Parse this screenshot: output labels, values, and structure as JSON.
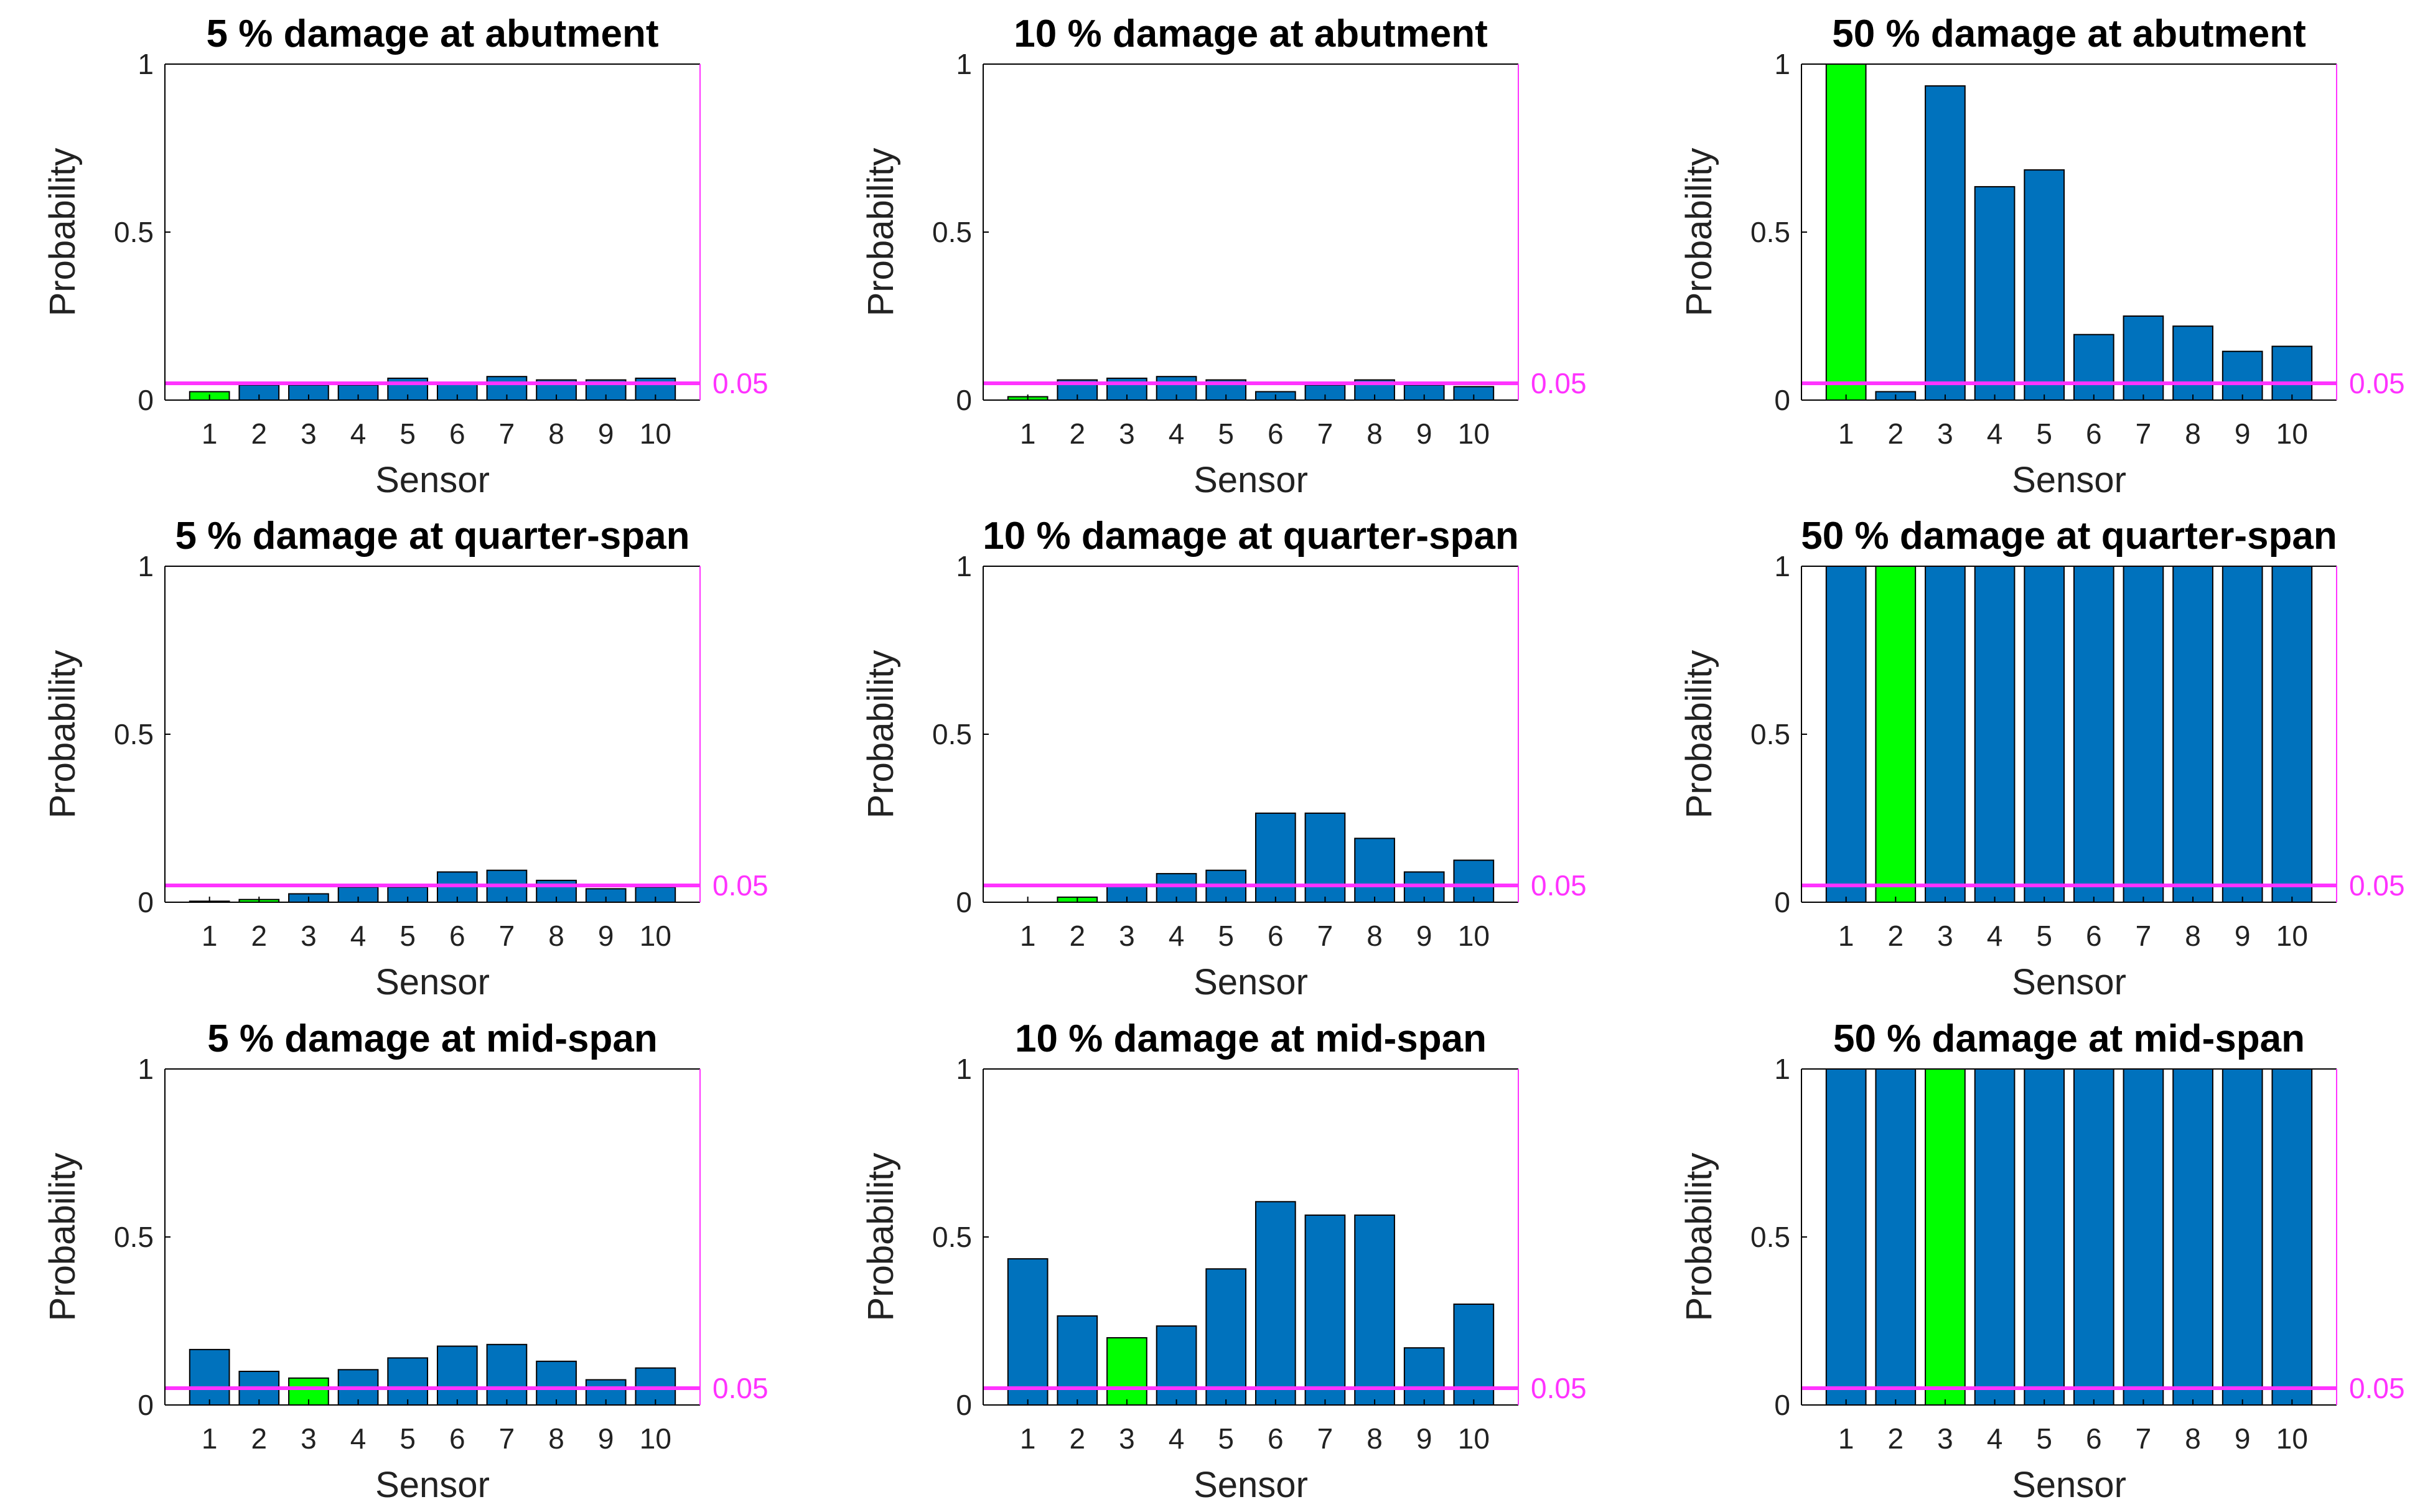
{
  "figure": {
    "colors": {
      "bar": "#0072BD",
      "highlight": "#00FF00",
      "threshold": "#FF33FF",
      "axis": "#000000",
      "right_axis": "#FF33FF"
    }
  },
  "chart_data": [
    {
      "type": "bar",
      "title": "5 % damage at abutment",
      "xlabel": "Sensor",
      "ylabel": "Probability",
      "categories": [
        "1",
        "2",
        "3",
        "4",
        "5",
        "6",
        "7",
        "8",
        "9",
        "10"
      ],
      "values": [
        0.025,
        0.045,
        0.045,
        0.045,
        0.065,
        0.05,
        0.07,
        0.06,
        0.06,
        0.065
      ],
      "highlight_index": 0,
      "ylim": [
        0,
        1
      ],
      "yticks": [
        "0",
        "0.5",
        "1"
      ],
      "threshold": 0.05,
      "threshold_label": "0.05"
    },
    {
      "type": "bar",
      "title": "10 % damage at abutment",
      "xlabel": "Sensor",
      "ylabel": "Probability",
      "categories": [
        "1",
        "2",
        "3",
        "4",
        "5",
        "6",
        "7",
        "8",
        "9",
        "10"
      ],
      "values": [
        0.01,
        0.06,
        0.065,
        0.07,
        0.06,
        0.025,
        0.045,
        0.06,
        0.045,
        0.04
      ],
      "highlight_index": 0,
      "ylim": [
        0,
        1
      ],
      "yticks": [
        "0",
        "0.5",
        "1"
      ],
      "threshold": 0.05,
      "threshold_label": "0.05"
    },
    {
      "type": "bar",
      "title": "50 % damage at abutment",
      "xlabel": "Sensor",
      "ylabel": "Probability",
      "categories": [
        "1",
        "2",
        "3",
        "4",
        "5",
        "6",
        "7",
        "8",
        "9",
        "10"
      ],
      "values": [
        1.0,
        0.025,
        0.935,
        0.635,
        0.685,
        0.195,
        0.25,
        0.22,
        0.145,
        0.16
      ],
      "highlight_index": 0,
      "ylim": [
        0,
        1
      ],
      "yticks": [
        "0",
        "0.5",
        "1"
      ],
      "threshold": 0.05,
      "threshold_label": "0.05"
    },
    {
      "type": "bar",
      "title": "5 % damage at quarter-span",
      "xlabel": "Sensor",
      "ylabel": "Probability",
      "categories": [
        "1",
        "2",
        "3",
        "4",
        "5",
        "6",
        "7",
        "8",
        "9",
        "10"
      ],
      "values": [
        0.003,
        0.008,
        0.025,
        0.045,
        0.045,
        0.09,
        0.095,
        0.065,
        0.04,
        0.045
      ],
      "highlight_index": 1,
      "ylim": [
        0,
        1
      ],
      "yticks": [
        "0",
        "0.5",
        "1"
      ],
      "threshold": 0.05,
      "threshold_label": "0.05"
    },
    {
      "type": "bar",
      "title": "10 % damage at quarter-span",
      "xlabel": "Sensor",
      "ylabel": "Probability",
      "categories": [
        "1",
        "2",
        "3",
        "4",
        "5",
        "6",
        "7",
        "8",
        "9",
        "10"
      ],
      "values": [
        0.0,
        0.015,
        0.05,
        0.085,
        0.095,
        0.265,
        0.265,
        0.19,
        0.09,
        0.125
      ],
      "highlight_index": 1,
      "ylim": [
        0,
        1
      ],
      "yticks": [
        "0",
        "0.5",
        "1"
      ],
      "threshold": 0.05,
      "threshold_label": "0.05"
    },
    {
      "type": "bar",
      "title": "50 % damage at quarter-span",
      "xlabel": "Sensor",
      "ylabel": "Probability",
      "categories": [
        "1",
        "2",
        "3",
        "4",
        "5",
        "6",
        "7",
        "8",
        "9",
        "10"
      ],
      "values": [
        1.0,
        1.0,
        1.0,
        1.0,
        1.0,
        1.0,
        1.0,
        1.0,
        1.0,
        1.0
      ],
      "highlight_index": 1,
      "ylim": [
        0,
        1
      ],
      "yticks": [
        "0",
        "0.5",
        "1"
      ],
      "threshold": 0.05,
      "threshold_label": "0.05"
    },
    {
      "type": "bar",
      "title": "5 % damage at mid-span",
      "xlabel": "Sensor",
      "ylabel": "Probability",
      "categories": [
        "1",
        "2",
        "3",
        "4",
        "5",
        "6",
        "7",
        "8",
        "9",
        "10"
      ],
      "values": [
        0.165,
        0.1,
        0.08,
        0.105,
        0.14,
        0.175,
        0.18,
        0.13,
        0.075,
        0.11
      ],
      "highlight_index": 2,
      "ylim": [
        0,
        1
      ],
      "yticks": [
        "0",
        "0.5",
        "1"
      ],
      "threshold": 0.05,
      "threshold_label": "0.05"
    },
    {
      "type": "bar",
      "title": "10 % damage at mid-span",
      "xlabel": "Sensor",
      "ylabel": "Probability",
      "categories": [
        "1",
        "2",
        "3",
        "4",
        "5",
        "6",
        "7",
        "8",
        "9",
        "10"
      ],
      "values": [
        0.435,
        0.265,
        0.2,
        0.235,
        0.405,
        0.605,
        0.565,
        0.565,
        0.17,
        0.3
      ],
      "highlight_index": 2,
      "ylim": [
        0,
        1
      ],
      "yticks": [
        "0",
        "0.5",
        "1"
      ],
      "threshold": 0.05,
      "threshold_label": "0.05"
    },
    {
      "type": "bar",
      "title": "50 % damage at mid-span",
      "xlabel": "Sensor",
      "ylabel": "Probability",
      "categories": [
        "1",
        "2",
        "3",
        "4",
        "5",
        "6",
        "7",
        "8",
        "9",
        "10"
      ],
      "values": [
        1.0,
        1.0,
        1.0,
        1.0,
        1.0,
        1.0,
        1.0,
        1.0,
        1.0,
        1.0
      ],
      "highlight_index": 2,
      "ylim": [
        0,
        1
      ],
      "yticks": [
        "0",
        "0.5",
        "1"
      ],
      "threshold": 0.05,
      "threshold_label": "0.05"
    }
  ]
}
